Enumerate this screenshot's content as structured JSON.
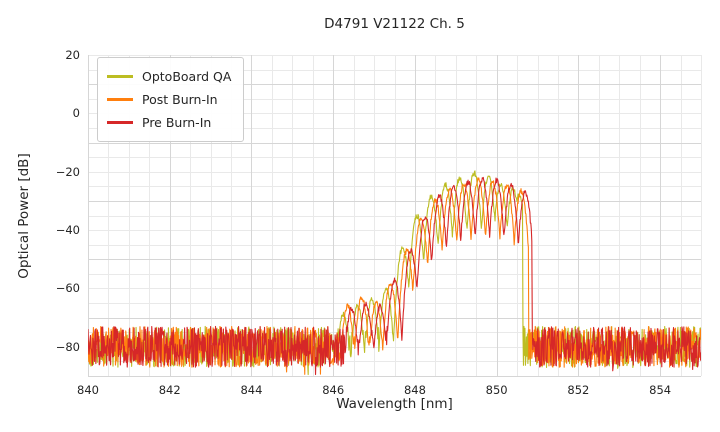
{
  "chart": {
    "title": "D4791 V21122 Ch. 5",
    "xlabel": "Wavelength [nm]",
    "ylabel": "Optical Power [dB]"
  },
  "chart_data": {
    "type": "line",
    "title": "D4791 V21122 Ch. 5",
    "xlabel": "Wavelength [nm]",
    "ylabel": "Optical Power [dB]",
    "xlim": [
      840,
      855
    ],
    "ylim": [
      -90,
      20
    ],
    "x_ticks": [
      840,
      842,
      844,
      846,
      848,
      850,
      852,
      854
    ],
    "y_ticks": [
      20,
      0,
      -20,
      -40,
      -60,
      -80
    ],
    "grid": {
      "on": true,
      "minor_x_step": 0.5,
      "minor_y_step": 5,
      "major_x_step": 2,
      "major_y_step": 20
    },
    "legend_position": "upper left",
    "noise_floor": {
      "mean": -80,
      "spread": 7
    },
    "mode_curvature": 625,
    "series": [
      {
        "name": "OptoBoard QA",
        "color": "#bcbd22",
        "seed": 101,
        "onset": 846.0,
        "cutoff": 850.64,
        "modes": [
          [
            846.25,
            -69
          ],
          [
            846.6,
            -66
          ],
          [
            846.95,
            -64
          ],
          [
            847.3,
            -60
          ],
          [
            847.7,
            -46
          ],
          [
            848.05,
            -35
          ],
          [
            848.4,
            -28.5
          ],
          [
            848.75,
            -24.5
          ],
          [
            849.1,
            -22
          ],
          [
            849.45,
            -20.5
          ],
          [
            849.8,
            -21.5
          ],
          [
            850.1,
            -24
          ],
          [
            850.4,
            -26
          ],
          [
            850.55,
            -28
          ]
        ]
      },
      {
        "name": "Post Burn-In",
        "color": "#ff7f0e",
        "seed": 202,
        "onset": 846.1,
        "cutoff": 850.78,
        "modes": [
          [
            846.35,
            -66
          ],
          [
            846.7,
            -63
          ],
          [
            847.05,
            -65
          ],
          [
            847.4,
            -58
          ],
          [
            847.8,
            -47
          ],
          [
            848.15,
            -36
          ],
          [
            848.5,
            -29.5
          ],
          [
            848.85,
            -26
          ],
          [
            849.2,
            -24
          ],
          [
            849.55,
            -23
          ],
          [
            849.9,
            -23.5
          ],
          [
            850.25,
            -24.5
          ],
          [
            850.6,
            -26.5
          ]
        ]
      },
      {
        "name": "Pre Burn-In",
        "color": "#d62728",
        "seed": 303,
        "onset": 846.2,
        "cutoff": 850.86,
        "modes": [
          [
            846.45,
            -67
          ],
          [
            846.8,
            -65
          ],
          [
            847.15,
            -66
          ],
          [
            847.5,
            -57
          ],
          [
            847.9,
            -47
          ],
          [
            848.25,
            -35.5
          ],
          [
            848.6,
            -28.5
          ],
          [
            848.95,
            -25.5
          ],
          [
            849.3,
            -23.5
          ],
          [
            849.65,
            -22.5
          ],
          [
            850.0,
            -23
          ],
          [
            850.35,
            -24.5
          ],
          [
            850.7,
            -27
          ]
        ]
      }
    ]
  }
}
